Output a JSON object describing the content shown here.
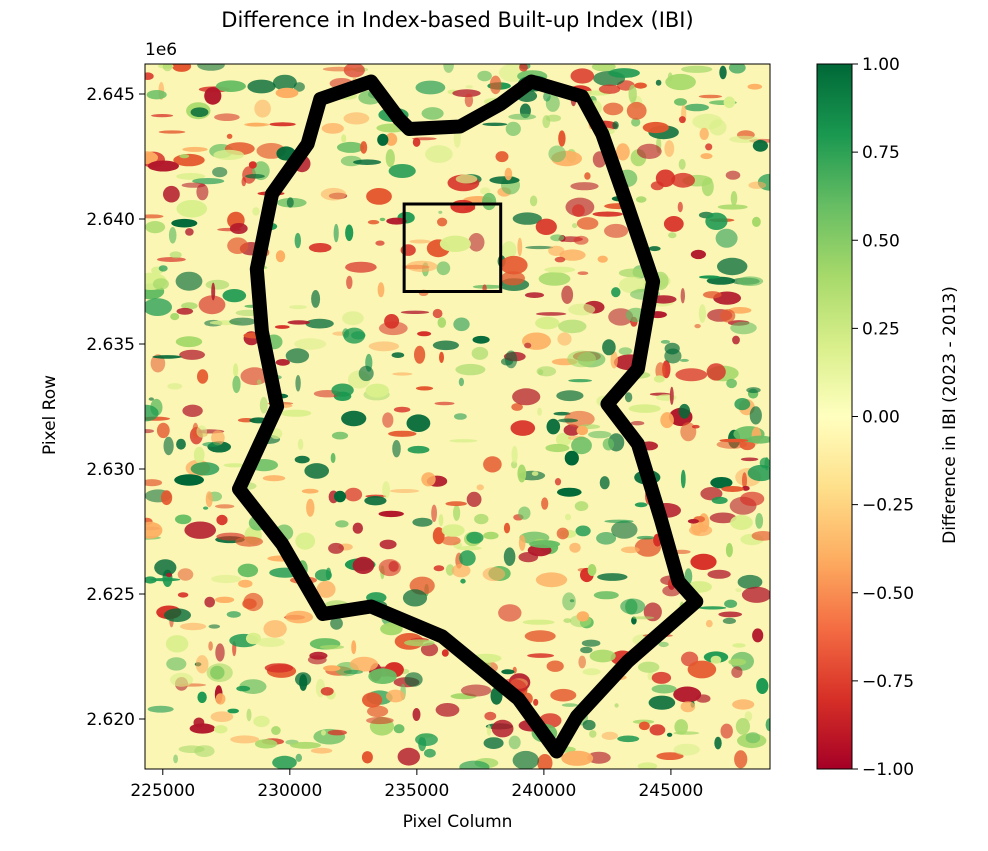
{
  "chart_data": {
    "type": "heatmap",
    "title": "Difference in Index-based Built-up Index (IBI)",
    "xlabel": "Pixel Column",
    "ylabel": "Pixel Row",
    "x_ticks": [
      225000,
      230000,
      235000,
      240000,
      245000
    ],
    "x_tick_labels": [
      "225000",
      "230000",
      "235000",
      "240000",
      "245000"
    ],
    "xlim": [
      224300,
      248900
    ],
    "y_ticks": [
      2620000,
      2625000,
      2630000,
      2635000,
      2640000,
      2645000
    ],
    "y_tick_labels": [
      "2.620",
      "2.625",
      "2.630",
      "2.635",
      "2.640",
      "2.645"
    ],
    "y_offset_label": "1e6",
    "ylim": [
      2618000,
      2646200
    ],
    "colorbar": {
      "label": "Difference in IBI (2023 - 2013)",
      "range": [
        -1.0,
        1.0
      ],
      "ticks": [
        1.0,
        0.75,
        0.5,
        0.25,
        0.0,
        -0.25,
        -0.5,
        -0.75,
        -1.0
      ],
      "tick_labels": [
        "1.00",
        "0.75",
        "0.50",
        "0.25",
        "0.00",
        "−0.25",
        "−0.50",
        "−0.75",
        "−1.00"
      ],
      "colormap": "RdYlGn",
      "colors": [
        "#a50026",
        "#d73027",
        "#f46d43",
        "#fdae61",
        "#fee08b",
        "#ffffbf",
        "#d9ef8b",
        "#a6d96a",
        "#66bd63",
        "#1a9850",
        "#006837"
      ]
    },
    "boundary": {
      "color": "#000000",
      "points": [
        [
          228000,
          2629200
        ],
        [
          229500,
          2632500
        ],
        [
          228900,
          2635500
        ],
        [
          228700,
          2638000
        ],
        [
          229300,
          2641000
        ],
        [
          230700,
          2643000
        ],
        [
          231200,
          2644800
        ],
        [
          233200,
          2645500
        ],
        [
          234300,
          2644000
        ],
        [
          234700,
          2643600
        ],
        [
          236700,
          2643700
        ],
        [
          238300,
          2644600
        ],
        [
          239500,
          2645500
        ],
        [
          241500,
          2644900
        ],
        [
          242300,
          2643400
        ],
        [
          243300,
          2640500
        ],
        [
          244300,
          2637500
        ],
        [
          243700,
          2634000
        ],
        [
          242500,
          2632600
        ],
        [
          243700,
          2631000
        ],
        [
          244600,
          2628000
        ],
        [
          245300,
          2625500
        ],
        [
          246000,
          2624700
        ],
        [
          243300,
          2622300
        ],
        [
          241300,
          2620100
        ],
        [
          240500,
          2618700
        ],
        [
          239000,
          2620800
        ],
        [
          236000,
          2623300
        ],
        [
          233200,
          2624500
        ],
        [
          231300,
          2624200
        ],
        [
          229700,
          2627000
        ],
        [
          228000,
          2629200
        ]
      ]
    },
    "inset_box": {
      "x_range": [
        234500,
        238300
      ],
      "y_range": [
        2637100,
        2640600
      ],
      "color": "#000000"
    }
  }
}
